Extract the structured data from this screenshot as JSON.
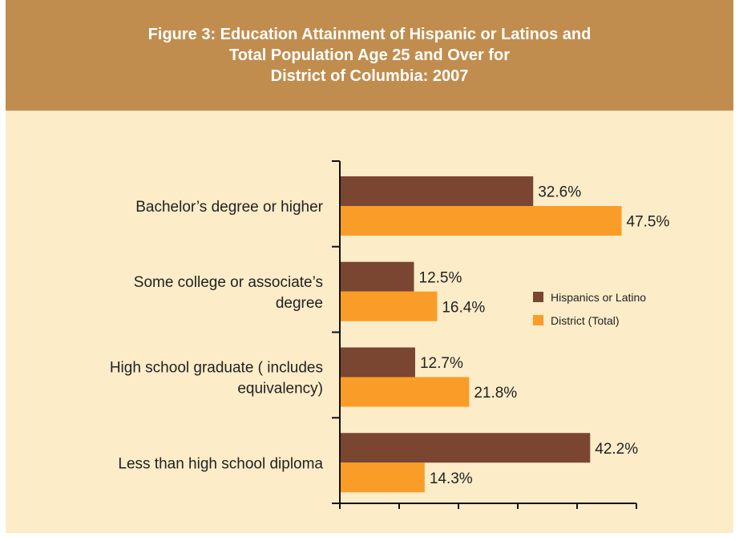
{
  "figure": {
    "title_lines": [
      "Figure 3: Education Attainment of Hispanic or Latinos and",
      "Total Population Age 25 and Over for",
      "District of Columbia: 2007"
    ]
  },
  "chart_data": {
    "type": "bar",
    "orientation": "horizontal",
    "title": "Figure 3: Education Attainment of Hispanic or Latinos and Total Population Age 25 and Over for District of Columbia: 2007",
    "categories": [
      [
        "Bachelor’s degree or higher"
      ],
      [
        "Some college or associate’s",
        "degree"
      ],
      [
        "High school graduate ( includes",
        "equivalency)"
      ],
      [
        "Less than high school diploma"
      ]
    ],
    "series": [
      {
        "name": "Hispanics or Latino",
        "color": "#7a4631",
        "values": [
          32.6,
          12.5,
          12.7,
          42.2
        ],
        "labels": [
          "32.6%",
          "12.5%",
          "12.7%",
          "42.2%"
        ]
      },
      {
        "name": "District (Total)",
        "color": "#f99d28",
        "values": [
          47.5,
          16.4,
          21.8,
          14.3
        ],
        "labels": [
          "47.5%",
          "16.4%",
          "21.8%",
          "14.3%"
        ]
      }
    ],
    "xlim": [
      0,
      50
    ],
    "x_ticks_labeled": false,
    "grid": false,
    "legend_position": "right"
  }
}
